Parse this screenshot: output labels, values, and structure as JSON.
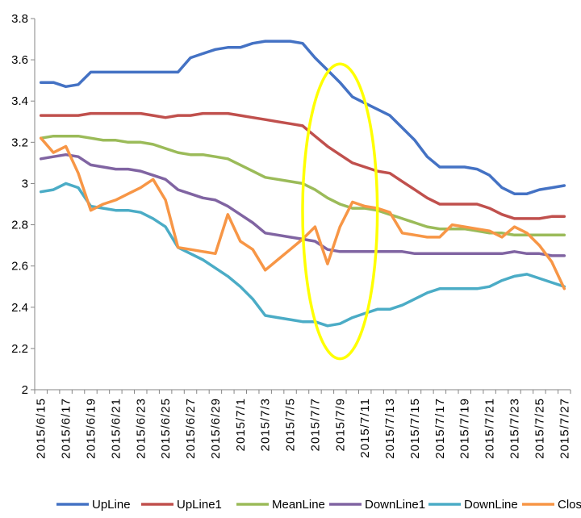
{
  "chart_data": {
    "type": "line",
    "ylim": [
      2,
      3.8
    ],
    "yticks": [
      "2",
      "2.2",
      "2.4",
      "2.6",
      "2.8",
      "3",
      "3.2",
      "3.4",
      "3.6",
      "3.8"
    ],
    "grid": false,
    "legend_position": "bottom",
    "x": [
      "2015/6/15",
      "2015/6/16",
      "2015/6/17",
      "2015/6/18",
      "2015/6/19",
      "2015/6/20",
      "2015/6/21",
      "2015/6/22",
      "2015/6/23",
      "2015/6/24",
      "2015/6/25",
      "2015/6/26",
      "2015/6/27",
      "2015/6/28",
      "2015/6/29",
      "2015/6/30",
      "2015/7/1",
      "2015/7/2",
      "2015/7/3",
      "2015/7/4",
      "2015/7/5",
      "2015/7/6",
      "2015/7/7",
      "2015/7/8",
      "2015/7/9",
      "2015/7/10",
      "2015/7/11",
      "2015/7/12",
      "2015/7/13",
      "2015/7/14",
      "2015/7/15",
      "2015/7/16",
      "2015/7/17",
      "2015/7/18",
      "2015/7/19",
      "2015/7/20",
      "2015/7/21",
      "2015/7/22",
      "2015/7/23",
      "2015/7/24",
      "2015/7/25",
      "2015/7/26",
      "2015/7/27"
    ],
    "xtick_labels": [
      "2015/6/15",
      "2015/6/17",
      "2015/6/19",
      "2015/6/21",
      "2015/6/23",
      "2015/6/25",
      "2015/6/27",
      "2015/6/29",
      "2015/7/1",
      "2015/7/3",
      "2015/7/5",
      "2015/7/7",
      "2015/7/9",
      "2015/7/11",
      "2015/7/13",
      "2015/7/15",
      "2015/7/17",
      "2015/7/19",
      "2015/7/21",
      "2015/7/23",
      "2015/7/25",
      "2015/7/27"
    ],
    "series": [
      {
        "name": "UpLine",
        "color": "#4472C4",
        "values": [
          3.49,
          3.49,
          3.47,
          3.48,
          3.54,
          3.54,
          3.54,
          3.54,
          3.54,
          3.54,
          3.54,
          3.54,
          3.61,
          3.63,
          3.65,
          3.66,
          3.66,
          3.68,
          3.69,
          3.69,
          3.69,
          3.68,
          3.61,
          3.55,
          3.49,
          3.42,
          3.39,
          3.36,
          3.33,
          3.27,
          3.21,
          3.13,
          3.08,
          3.08,
          3.08,
          3.07,
          3.04,
          2.98,
          2.95,
          2.95,
          2.97,
          2.98,
          2.99
        ]
      },
      {
        "name": "UpLine1",
        "color": "#C0504D",
        "values": [
          3.33,
          3.33,
          3.33,
          3.33,
          3.34,
          3.34,
          3.34,
          3.34,
          3.34,
          3.33,
          3.32,
          3.33,
          3.33,
          3.34,
          3.34,
          3.34,
          3.33,
          3.32,
          3.31,
          3.3,
          3.29,
          3.28,
          3.23,
          3.18,
          3.14,
          3.1,
          3.08,
          3.06,
          3.05,
          3.01,
          2.97,
          2.93,
          2.9,
          2.9,
          2.9,
          2.9,
          2.88,
          2.85,
          2.83,
          2.83,
          2.83,
          2.84,
          2.84
        ]
      },
      {
        "name": "MeanLine",
        "color": "#9BBB59",
        "values": [
          3.22,
          3.23,
          3.23,
          3.23,
          3.22,
          3.21,
          3.21,
          3.2,
          3.2,
          3.19,
          3.17,
          3.15,
          3.14,
          3.14,
          3.13,
          3.12,
          3.09,
          3.06,
          3.03,
          3.02,
          3.01,
          3.0,
          2.97,
          2.93,
          2.9,
          2.88,
          2.88,
          2.87,
          2.85,
          2.83,
          2.81,
          2.79,
          2.78,
          2.78,
          2.78,
          2.77,
          2.76,
          2.76,
          2.75,
          2.75,
          2.75,
          2.75,
          2.75
        ]
      },
      {
        "name": "DownLine1",
        "color": "#8064A2",
        "values": [
          3.12,
          3.13,
          3.14,
          3.13,
          3.09,
          3.08,
          3.07,
          3.07,
          3.06,
          3.04,
          3.02,
          2.97,
          2.95,
          2.93,
          2.92,
          2.89,
          2.85,
          2.81,
          2.76,
          2.75,
          2.74,
          2.73,
          2.72,
          2.68,
          2.67,
          2.67,
          2.67,
          2.67,
          2.67,
          2.67,
          2.66,
          2.66,
          2.66,
          2.66,
          2.66,
          2.66,
          2.66,
          2.66,
          2.67,
          2.66,
          2.66,
          2.65,
          2.65
        ]
      },
      {
        "name": "DownLine",
        "color": "#4BACC6",
        "values": [
          2.96,
          2.97,
          3.0,
          2.98,
          2.89,
          2.88,
          2.87,
          2.87,
          2.86,
          2.83,
          2.79,
          2.69,
          2.66,
          2.63,
          2.59,
          2.55,
          2.5,
          2.44,
          2.36,
          2.35,
          2.34,
          2.33,
          2.33,
          2.31,
          2.32,
          2.35,
          2.37,
          2.39,
          2.39,
          2.41,
          2.44,
          2.47,
          2.49,
          2.49,
          2.49,
          2.49,
          2.5,
          2.53,
          2.55,
          2.56,
          2.54,
          2.52,
          2.5
        ]
      },
      {
        "name": "Close",
        "color": "#F79646",
        "values": [
          3.22,
          3.15,
          3.18,
          3.05,
          2.87,
          2.9,
          2.92,
          2.95,
          2.98,
          3.02,
          2.92,
          2.69,
          2.68,
          2.67,
          2.66,
          2.85,
          2.72,
          2.68,
          2.58,
          2.63,
          2.68,
          2.73,
          2.79,
          2.61,
          2.79,
          2.91,
          2.89,
          2.88,
          2.86,
          2.76,
          2.75,
          2.74,
          2.74,
          2.8,
          2.79,
          2.78,
          2.77,
          2.74,
          2.79,
          2.76,
          2.7,
          2.62,
          2.49
        ]
      }
    ],
    "annotation": {
      "shape": "ellipse",
      "color": "#FFFF00",
      "from_x": "2015/7/6",
      "to_x": "2015/7/12",
      "y_range": [
        2.15,
        3.58
      ]
    }
  }
}
